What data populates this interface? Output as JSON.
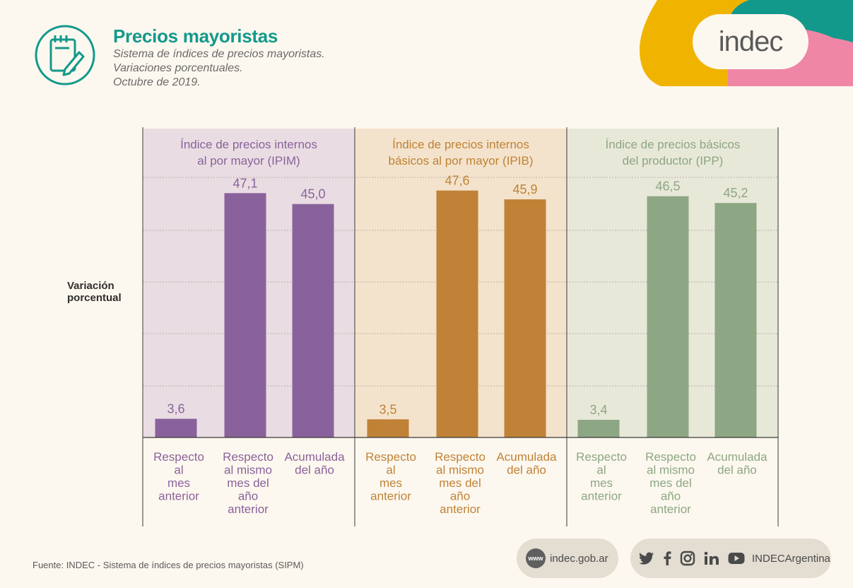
{
  "header": {
    "title": "Precios mayoristas",
    "subtitle_lines": [
      "Sistema de índices de precios mayoristas.",
      "Variaciones porcentuales.",
      "Octubre de 2019."
    ],
    "logo_text": "indec",
    "icon": "notepad-pencil-icon"
  },
  "colors": {
    "brand_teal": "#13998b",
    "logo_yellow": "#f0b400",
    "logo_teal": "#13998b",
    "logo_pink": "#ef86a6"
  },
  "chart_data": {
    "type": "bar",
    "ylabel": "Variación porcentual",
    "ylim": [
      0,
      50
    ],
    "grid": true,
    "categories": [
      "Respecto al mes anterior",
      "Respecto al mismo mes del año anterior",
      "Acumulada del año"
    ],
    "panels": [
      {
        "name": "Índice de precios internos al por mayor (IPIM)",
        "title_lines": [
          "Índice de precios internos",
          "al por mayor (IPIM)"
        ],
        "color": "#8a629b",
        "bg": "#e9dde3",
        "values": [
          3.6,
          47.1,
          45.0
        ],
        "value_labels": [
          "3,6",
          "47,1",
          "45,0"
        ],
        "category_lines": [
          [
            "Respecto",
            "al",
            "mes",
            "anterior"
          ],
          [
            "Respecto",
            "al mismo",
            "mes del",
            "año",
            "anterior"
          ],
          [
            "Acumulada",
            "del año"
          ]
        ]
      },
      {
        "name": "Índice de precios internos básicos al por mayor (IPIB)",
        "title_lines": [
          "Índice de precios internos",
          "básicos al por mayor (IPIB)"
        ],
        "color": "#bf8236",
        "bg": "#f4e3cc",
        "values": [
          3.5,
          47.6,
          45.9
        ],
        "value_labels": [
          "3,5",
          "47,6",
          "45,9"
        ],
        "category_lines": [
          [
            "Respecto",
            "al",
            "mes",
            "anterior"
          ],
          [
            "Respecto",
            "al mismo",
            "mes del",
            "año",
            "anterior"
          ],
          [
            "Acumulada",
            "del año"
          ]
        ]
      },
      {
        "name": "Índice de precios básicos del productor (IPP)",
        "title_lines": [
          "Índice de precios básicos",
          "del productor (IPP)"
        ],
        "color": "#8da683",
        "bg": "#e8e8d9",
        "values": [
          3.4,
          46.5,
          45.2
        ],
        "value_labels": [
          "3,4",
          "46,5",
          "45,2"
        ],
        "category_lines": [
          [
            "Respecto",
            "al",
            "mes",
            "anterior"
          ],
          [
            "Respecto",
            "al mismo",
            "mes del",
            "año",
            "anterior"
          ],
          [
            "Acumulada",
            "del año"
          ]
        ]
      }
    ]
  },
  "footer": {
    "source": "Fuente: INDEC - Sistema de índices de precios mayoristas (SIPM)",
    "www_badge": "www",
    "website": "indec.gob.ar",
    "social_handle": "INDECArgentina",
    "social_icons": [
      "twitter-icon",
      "facebook-icon",
      "instagram-icon",
      "linkedin-icon",
      "youtube-icon"
    ]
  }
}
